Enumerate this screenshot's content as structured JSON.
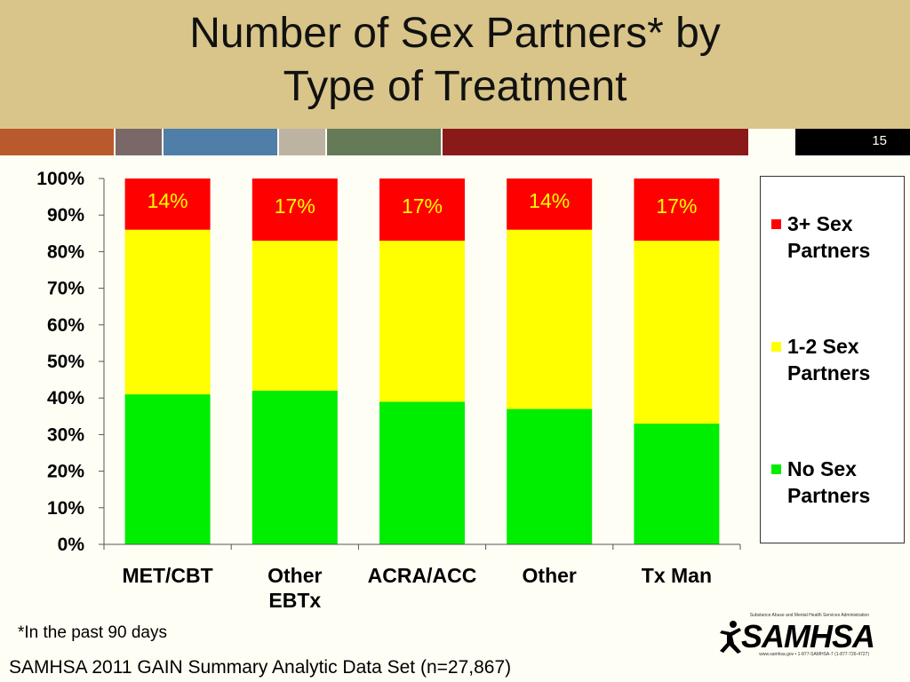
{
  "slide": {
    "title_lines": [
      "Number of Sex Partners* by",
      "Type of Treatment"
    ],
    "slide_number": "15",
    "footnote": "*In the past 90 days",
    "source": "SAMHSA 2011 GAIN Summary Analytic Data Set (n=27,867)",
    "logo": {
      "tagline": "Substance Abuse and Mental Health Services Administration",
      "wordmark": "SAMHSA",
      "contact": "www.samhsa.gov • 1-877-SAMHSA-7 (1-877-726-4727)"
    },
    "stripe_colors": [
      "#b85a2c",
      "#7a6868",
      "#4f7ea8",
      "#bdb3a3",
      "#657a57",
      "#8a1a1a"
    ]
  },
  "chart_data": {
    "type": "bar",
    "stacked": true,
    "categories": [
      [
        "MET/CBT"
      ],
      [
        "Other",
        "EBTx"
      ],
      [
        "ACRA/ACC"
      ],
      [
        "Other"
      ],
      [
        "Tx Man"
      ]
    ],
    "series": [
      {
        "name": "No Sex Partners",
        "legend_lines": [
          "No Sex",
          "Partners"
        ],
        "color": "#00ee00",
        "values": [
          41,
          42,
          39,
          37,
          33
        ]
      },
      {
        "name": "1-2 Sex Partners",
        "legend_lines": [
          "1-2 Sex",
          "Partners"
        ],
        "color": "#ffff00",
        "values": [
          45,
          41,
          44,
          49,
          50
        ]
      },
      {
        "name": "3+ Sex Partners",
        "legend_lines": [
          "3+ Sex",
          "Partners"
        ],
        "color": "#ff0000",
        "values": [
          14,
          17,
          17,
          14,
          17
        ]
      }
    ],
    "data_labels": [
      "14%",
      "17%",
      "17%",
      "14%",
      "17%"
    ],
    "y_ticks": [
      "0%",
      "10%",
      "20%",
      "30%",
      "40%",
      "50%",
      "60%",
      "70%",
      "80%",
      "90%",
      "100%"
    ],
    "ylim": [
      0,
      100
    ],
    "grid": false,
    "legend_position": "right"
  }
}
